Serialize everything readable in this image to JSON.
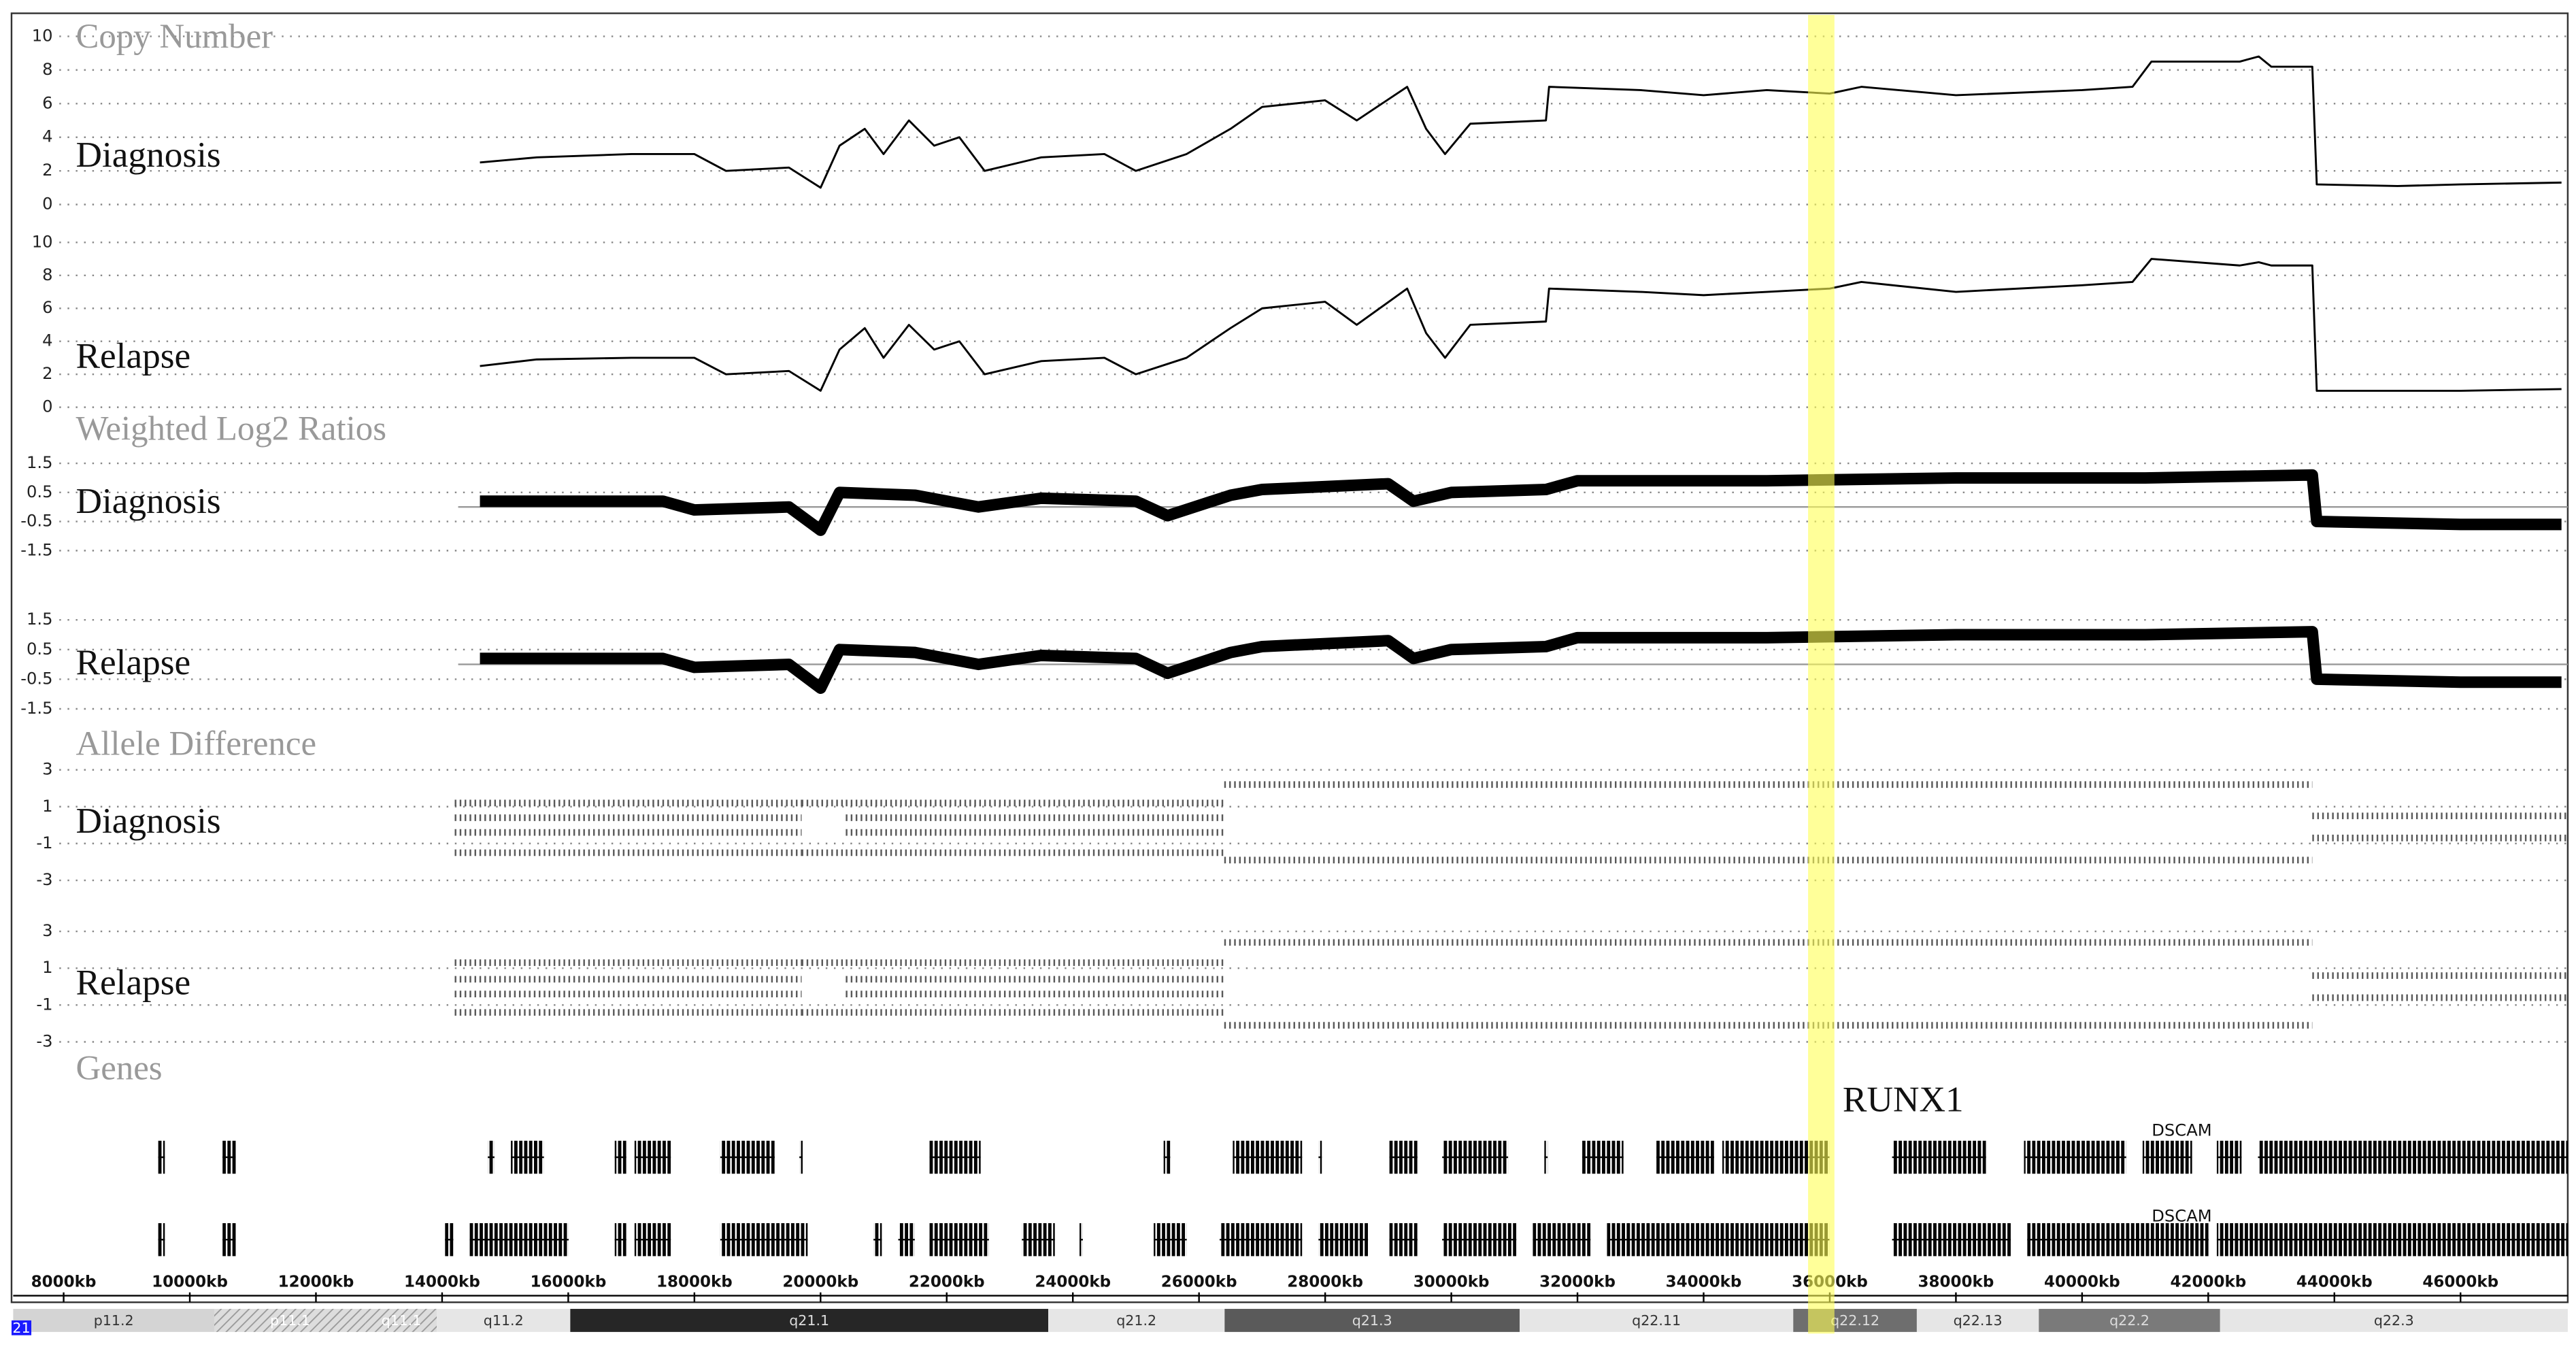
{
  "chart_data": {
    "type": "genome-browser",
    "chromosome": "21",
    "xlim": [
      7200,
      47700
    ],
    "xticks": [
      {
        "value": 8000,
        "label": "8000kb"
      },
      {
        "value": 10000,
        "label": "10000kb"
      },
      {
        "value": 12000,
        "label": "12000kb"
      },
      {
        "value": 14000,
        "label": "14000kb"
      },
      {
        "value": 16000,
        "label": "16000kb"
      },
      {
        "value": 18000,
        "label": "18000kb"
      },
      {
        "value": 20000,
        "label": "20000kb"
      },
      {
        "value": 22000,
        "label": "22000kb"
      },
      {
        "value": 24000,
        "label": "24000kb"
      },
      {
        "value": 26000,
        "label": "26000kb"
      },
      {
        "value": 28000,
        "label": "28000kb"
      },
      {
        "value": 30000,
        "label": "30000kb"
      },
      {
        "value": 32000,
        "label": "32000kb"
      },
      {
        "value": 34000,
        "label": "34000kb"
      },
      {
        "value": 36000,
        "label": "36000kb"
      },
      {
        "value": 38000,
        "label": "38000kb"
      },
      {
        "value": 40000,
        "label": "40000kb"
      },
      {
        "value": 42000,
        "label": "42000kb"
      },
      {
        "value": 44000,
        "label": "44000kb"
      },
      {
        "value": 46000,
        "label": "46000kb"
      }
    ],
    "highlight": {
      "start": 35656,
      "end": 36074,
      "color": "#ffff55"
    },
    "tracks": [
      {
        "title": "Copy Number",
        "type": "line",
        "panels": [
          {
            "label": "Diagnosis",
            "ylim": [
              0,
              10
            ],
            "yticks": [
              0,
              2,
              4,
              6,
              8,
              10
            ],
            "x": [
              14600,
              15500,
              17000,
              18000,
              18500,
              19500,
              20000,
              20300,
              20700,
              21000,
              21400,
              21800,
              22200,
              22600,
              23500,
              24500,
              25000,
              25800,
              26500,
              27000,
              28000,
              28500,
              29300,
              29600,
              29900,
              30300,
              31500,
              31550,
              33000,
              34000,
              35000,
              36000,
              36500,
              38000,
              40000,
              40800,
              41100,
              42500,
              42800,
              43000,
              43650,
              43720,
              45000,
              46000,
              47600
            ],
            "values": [
              2.5,
              2.8,
              3.0,
              3.0,
              2.0,
              2.2,
              1.0,
              3.5,
              4.5,
              3.0,
              5.0,
              3.5,
              4.0,
              2.0,
              2.8,
              3.0,
              2.0,
              3.0,
              4.5,
              5.8,
              6.2,
              5.0,
              7.0,
              4.5,
              3.0,
              4.8,
              5.0,
              7.0,
              6.8,
              6.5,
              6.8,
              6.6,
              7.0,
              6.5,
              6.8,
              7.0,
              8.5,
              8.5,
              8.8,
              8.2,
              8.2,
              1.2,
              1.1,
              1.2,
              1.3
            ]
          },
          {
            "label": "Relapse",
            "ylim": [
              0,
              10
            ],
            "yticks": [
              0,
              2,
              4,
              6,
              8,
              10
            ],
            "x": [
              14600,
              15500,
              17000,
              18000,
              18500,
              19500,
              20000,
              20300,
              20700,
              21000,
              21400,
              21800,
              22200,
              22600,
              23500,
              24500,
              25000,
              25800,
              26500,
              27000,
              28000,
              28500,
              29300,
              29600,
              29900,
              30300,
              31500,
              31550,
              33000,
              34000,
              35000,
              36000,
              36500,
              38000,
              40000,
              40800,
              41100,
              42500,
              42800,
              43000,
              43650,
              43720,
              45000,
              46000,
              47600
            ],
            "values": [
              2.5,
              2.9,
              3.0,
              3.0,
              2.0,
              2.2,
              1.0,
              3.5,
              4.8,
              3.0,
              5.0,
              3.5,
              4.0,
              2.0,
              2.8,
              3.0,
              2.0,
              3.0,
              4.8,
              6.0,
              6.4,
              5.0,
              7.2,
              4.5,
              3.0,
              5.0,
              5.2,
              7.2,
              7.0,
              6.8,
              7.0,
              7.2,
              7.6,
              7.0,
              7.4,
              7.6,
              9.0,
              8.6,
              8.8,
              8.6,
              8.6,
              1.0,
              1.0,
              1.0,
              1.1
            ]
          }
        ]
      },
      {
        "title": "Weighted Log2 Ratios",
        "type": "band",
        "panels": [
          {
            "label": "Diagnosis",
            "ylim": [
              -2,
              2
            ],
            "yticks": [
              1.5,
              0.5,
              -0.5,
              -1.5
            ],
            "x": [
              14600,
              17500,
              18000,
              19500,
              20000,
              20300,
              21500,
              22500,
              23500,
              25000,
              25500,
              26500,
              27000,
              29000,
              29400,
              30000,
              31500,
              32000,
              35000,
              38000,
              41000,
              43650,
              43720,
              46000,
              47600
            ],
            "values": [
              0.2,
              0.2,
              -0.1,
              0,
              -0.8,
              0.5,
              0.4,
              0,
              0.3,
              0.2,
              -0.3,
              0.4,
              0.6,
              0.8,
              0.2,
              0.5,
              0.6,
              0.9,
              0.9,
              1.0,
              1.0,
              1.1,
              -0.5,
              -0.6,
              -0.6
            ]
          },
          {
            "label": "Relapse",
            "ylim": [
              -2,
              2
            ],
            "yticks": [
              1.5,
              0.5,
              -0.5,
              -1.5
            ],
            "x": [
              14600,
              17500,
              18000,
              19500,
              20000,
              20300,
              21500,
              22500,
              23500,
              25000,
              25500,
              26500,
              27000,
              29000,
              29400,
              30000,
              31500,
              32000,
              35000,
              38000,
              41000,
              43650,
              43720,
              46000,
              47600
            ],
            "values": [
              0.2,
              0.2,
              -0.1,
              0,
              -0.8,
              0.5,
              0.4,
              0,
              0.3,
              0.2,
              -0.3,
              0.4,
              0.6,
              0.8,
              0.2,
              0.5,
              0.6,
              0.9,
              0.9,
              1.0,
              1.0,
              1.1,
              -0.5,
              -0.6,
              -0.6
            ]
          }
        ]
      },
      {
        "title": "Allele Difference",
        "type": "cloud",
        "panels": [
          {
            "label": "Diagnosis",
            "ylim": [
              -3.5,
              3.5
            ],
            "yticks": [
              3,
              1,
              -1,
              -3
            ],
            "segments": [
              {
                "start": 14200,
                "end": 19700,
                "values": [
                  1.2,
                  0.4,
                  -0.4,
                  -1.5
                ]
              },
              {
                "start": 19700,
                "end": 20400,
                "values": [
                  1.2,
                  -1.5
                ]
              },
              {
                "start": 20400,
                "end": 26400,
                "values": [
                  1.2,
                  0.4,
                  -0.4,
                  -1.5
                ]
              },
              {
                "start": 26400,
                "end": 43650,
                "values": [
                  2.2,
                  -1.9
                ]
              },
              {
                "start": 43650,
                "end": 47700,
                "values": [
                  0.5,
                  -0.7
                ]
              }
            ]
          },
          {
            "label": "Relapse",
            "ylim": [
              -3.5,
              3.5
            ],
            "yticks": [
              3,
              1,
              -1,
              -3
            ],
            "segments": [
              {
                "start": 14200,
                "end": 19700,
                "values": [
                  1.3,
                  0.4,
                  -0.4,
                  -1.4
                ]
              },
              {
                "start": 19700,
                "end": 20400,
                "values": [
                  1.3,
                  -1.4
                ]
              },
              {
                "start": 20400,
                "end": 26400,
                "values": [
                  1.3,
                  0.4,
                  -0.4,
                  -1.4
                ]
              },
              {
                "start": 26400,
                "end": 43650,
                "values": [
                  2.4,
                  -2.1
                ]
              },
              {
                "start": 43650,
                "end": 47700,
                "values": [
                  0.6,
                  -0.6
                ]
              }
            ]
          }
        ]
      }
    ],
    "genes": {
      "title": "Genes",
      "annotations": [
        {
          "name": "RUNX1",
          "position": 36100
        },
        {
          "name": "DSCAM",
          "position": 41000
        },
        {
          "name": "DSCAM",
          "position": 41000
        }
      ],
      "rows": [
        [
          [
            9499,
            9604
          ],
          [
            10519,
            10728
          ],
          [
            14725,
            14830
          ],
          [
            15091,
            15614
          ],
          [
            16737,
            16920
          ],
          [
            17051,
            17626
          ],
          [
            18410,
            19272
          ],
          [
            19664,
            19716
          ],
          [
            21728,
            22538
          ],
          [
            25439,
            25543
          ],
          [
            26536,
            27634
          ],
          [
            27895,
            27947
          ],
          [
            29019,
            29463
          ],
          [
            29855,
            30900
          ],
          [
            31475,
            31527
          ],
          [
            32076,
            32729
          ],
          [
            33252,
            34166
          ],
          [
            34297,
            35995
          ],
          [
            36988,
            38478
          ],
          [
            39079,
            40699
          ],
          [
            40960,
            41744
          ],
          [
            42136,
            42528
          ],
          [
            42789,
            47700
          ]
        ],
        [
          [
            9499,
            9604
          ],
          [
            10519,
            10728
          ],
          [
            14046,
            14177
          ],
          [
            14438,
            16006
          ],
          [
            16737,
            16920
          ],
          [
            17051,
            17626
          ],
          [
            18410,
            19795
          ],
          [
            20840,
            20971
          ],
          [
            21232,
            21493
          ],
          [
            21728,
            22669
          ],
          [
            23192,
            23714
          ],
          [
            24106,
            24158
          ],
          [
            25282,
            25805
          ],
          [
            26327,
            27634
          ],
          [
            27895,
            28679
          ],
          [
            29019,
            29463
          ],
          [
            29855,
            31031
          ],
          [
            31292,
            32207
          ],
          [
            32468,
            35995
          ],
          [
            36988,
            38870
          ],
          [
            39131,
            42005
          ],
          [
            42136,
            47700
          ]
        ]
      ]
    },
    "bands": [
      {
        "name": "p11.2",
        "start": 7200,
        "end": 10388,
        "color": "#d4d4d4"
      },
      {
        "name": "p11.1",
        "start": 10388,
        "end": 12792,
        "color": "hatch"
      },
      {
        "name": "q11.1",
        "start": 12792,
        "end": 13916,
        "color": "hatch"
      },
      {
        "name": "q11.2",
        "start": 13916,
        "end": 16032,
        "color": "#e6e6e6"
      },
      {
        "name": "q21.1",
        "start": 16032,
        "end": 23610,
        "color": "#262626"
      },
      {
        "name": "q21.2",
        "start": 23610,
        "end": 26406,
        "color": "#e6e6e6"
      },
      {
        "name": "q21.3",
        "start": 26406,
        "end": 31083,
        "color": "#5a5a5a"
      },
      {
        "name": "q22.11",
        "start": 31083,
        "end": 35421,
        "color": "#e6e6e6"
      },
      {
        "name": "q22.12",
        "start": 35421,
        "end": 37380,
        "color": "#6e6e6e"
      },
      {
        "name": "q22.13",
        "start": 37380,
        "end": 39314,
        "color": "#e6e6e6"
      },
      {
        "name": "q22.2",
        "start": 39314,
        "end": 42188,
        "color": "#7a7a7a"
      },
      {
        "name": "q22.3",
        "start": 42188,
        "end": 47700,
        "color": "#e6e6e6"
      }
    ]
  }
}
